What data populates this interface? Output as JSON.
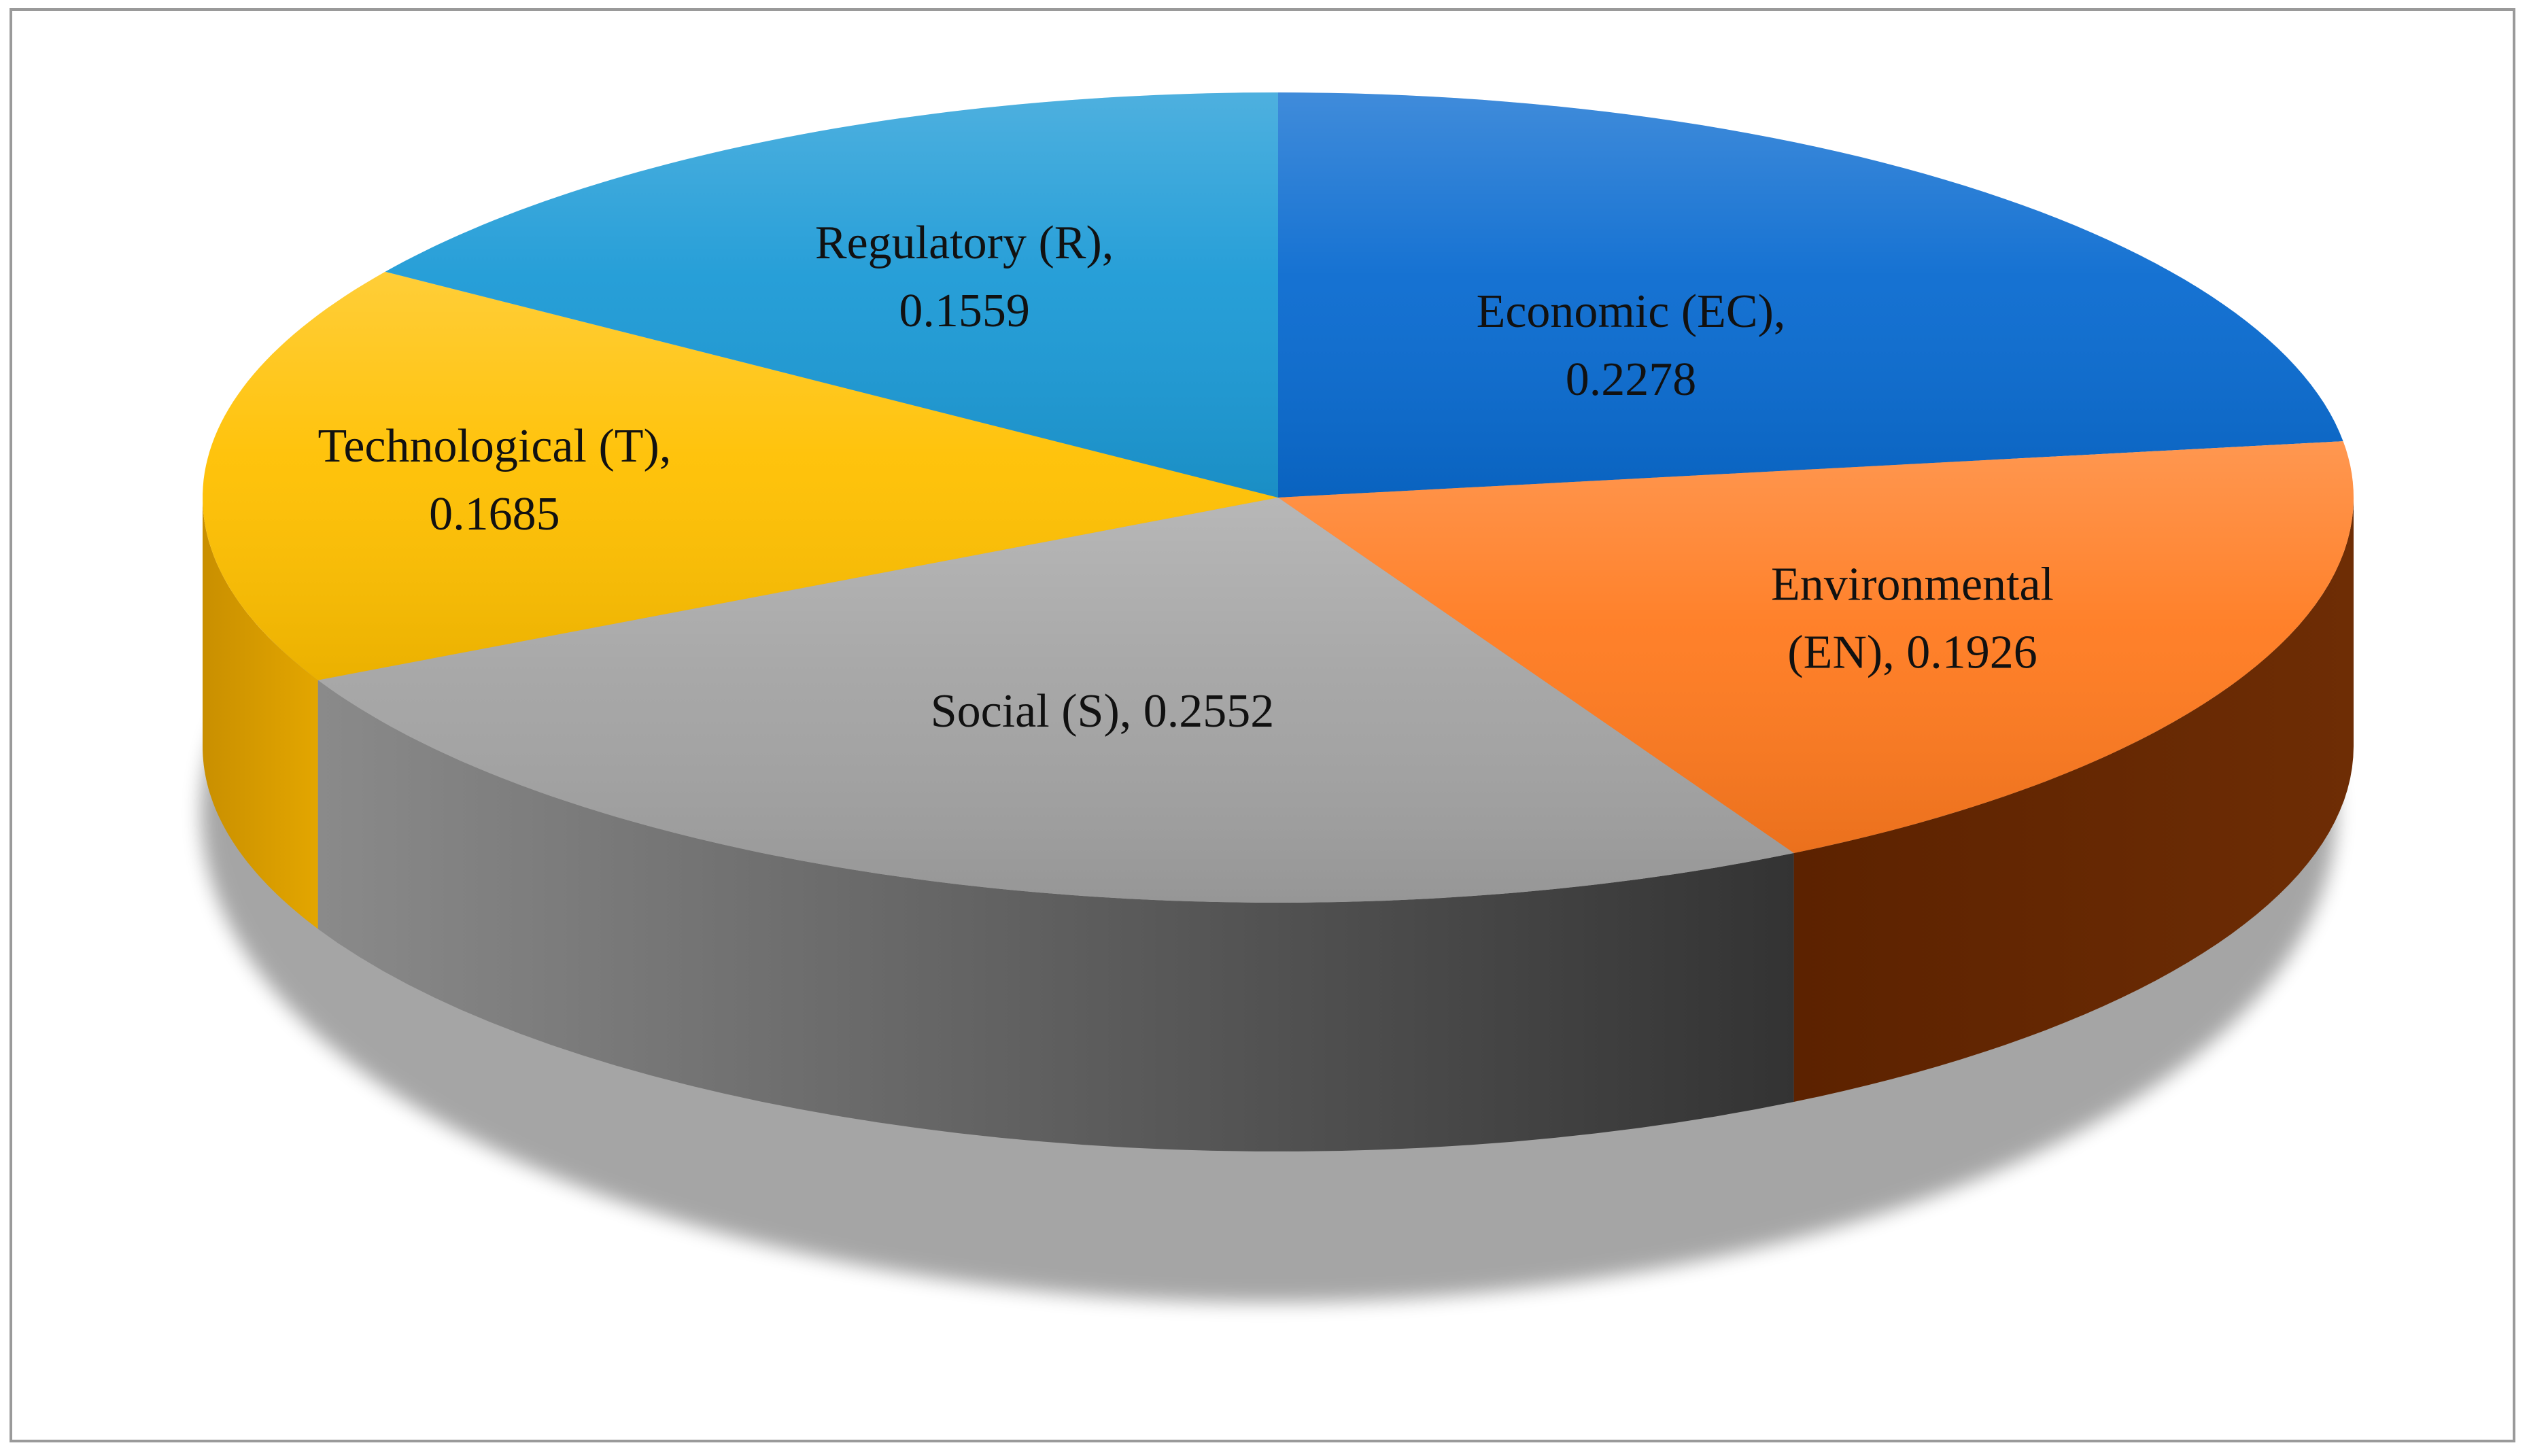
{
  "chart_data": {
    "type": "pie",
    "title": "",
    "style": "3d",
    "slices": [
      {
        "label": "Economic (EC),",
        "value": 0.2278,
        "value_text": "0.2278",
        "color": "#0a6bd0"
      },
      {
        "label": "Environmental",
        "value": 0.1926,
        "value_text": "(EN), 0.1926",
        "color": "#ff7a1f"
      },
      {
        "label": "Social (S), 0.2552",
        "value": 0.2552,
        "value_text": "",
        "color": "#a3a3a3"
      },
      {
        "label": "Technological (T),",
        "value": 0.1685,
        "value_text": "0.1685",
        "color": "#ffc000"
      },
      {
        "label": "Regulatory (R),",
        "value": 0.1559,
        "value_text": "0.1559",
        "color": "#1c9ad6"
      }
    ]
  }
}
